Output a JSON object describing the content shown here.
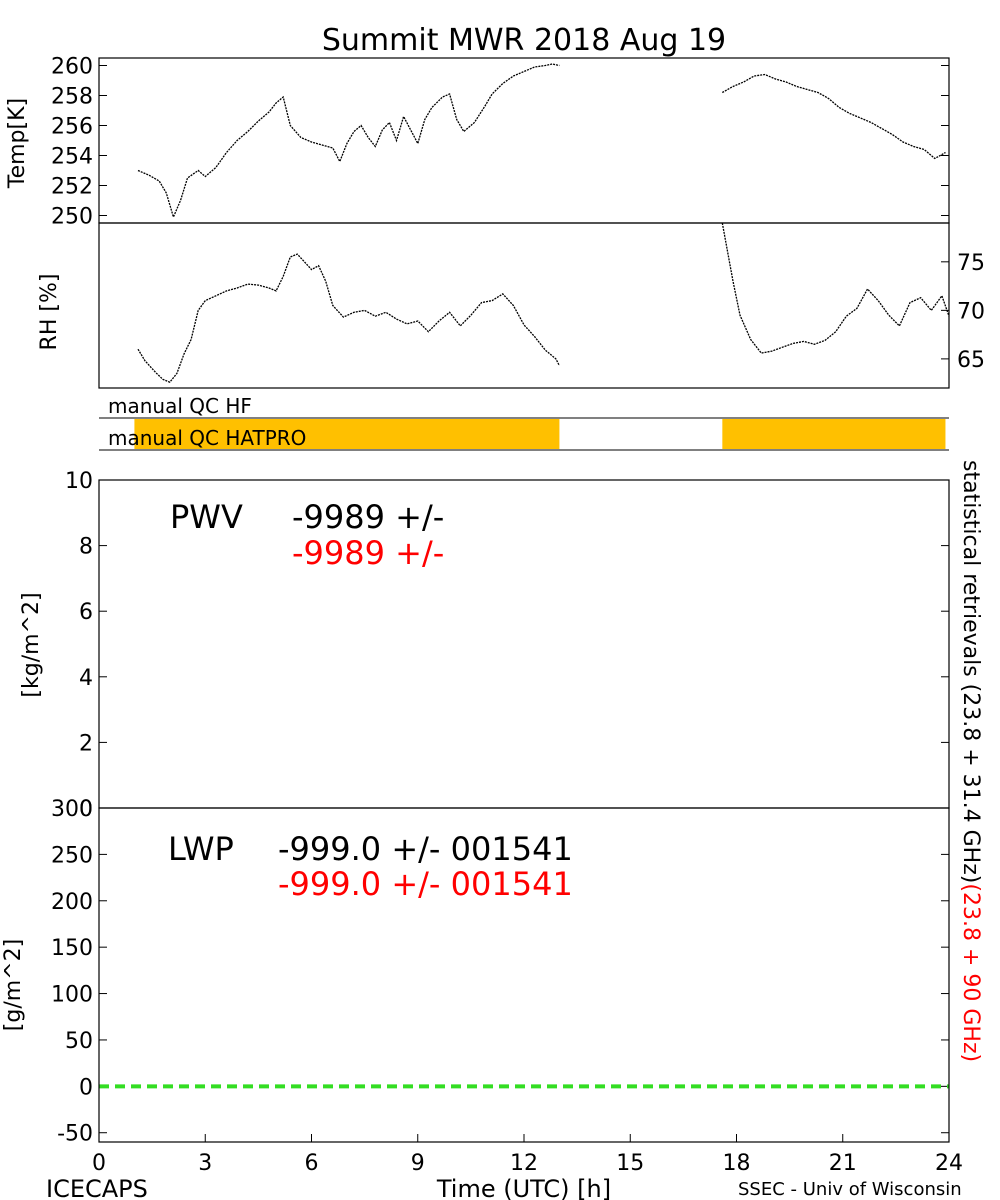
{
  "title": "Summit MWR 2018 Aug 19",
  "footer": {
    "left": "ICECAPS",
    "xlabel": "Time (UTC) [h]",
    "right": "SSEC - Univ of Wisconsin"
  },
  "side_label": {
    "black": "statistical retrievals (23.8 + 31.4 GHz)",
    "red": "(23.8 + 90 GHz)"
  },
  "colors": {
    "series_black": "#000000",
    "series_red": "#ff0000",
    "qc_bar": "#ffc000",
    "zero_line": "#33dd22"
  },
  "chart_data": [
    {
      "type": "line",
      "panel": "temperature",
      "ylabel": "Temp[K]",
      "xlim": [
        0,
        24
      ],
      "ylim": [
        249.5,
        260.5
      ],
      "yticks": [
        250,
        252,
        254,
        256,
        258,
        260
      ],
      "series": [
        {
          "x": [
            1.1,
            1.4,
            1.7,
            1.9,
            2.1,
            2.3,
            2.5,
            2.8,
            3.0,
            3.3,
            3.6,
            3.9,
            4.2,
            4.5,
            4.8,
            5.0,
            5.2,
            5.4,
            5.7,
            6.0,
            6.3,
            6.6,
            6.8,
            7.0,
            7.2,
            7.4,
            7.6,
            7.8,
            8.0,
            8.2,
            8.4,
            8.6,
            8.8,
            9.0,
            9.2,
            9.4,
            9.7,
            9.9,
            10.1,
            10.3,
            10.6,
            10.9,
            11.1,
            11.4,
            11.7,
            12.0,
            12.3,
            12.6,
            12.8,
            13.0
          ],
          "values": [
            253.0,
            252.7,
            252.3,
            251.5,
            249.9,
            251.0,
            252.5,
            253.0,
            252.6,
            253.2,
            254.2,
            255.0,
            255.6,
            256.3,
            256.9,
            257.5,
            257.9,
            256.0,
            255.2,
            254.9,
            254.7,
            254.5,
            253.6,
            254.8,
            255.6,
            256.0,
            255.2,
            254.6,
            255.7,
            256.2,
            255.0,
            256.6,
            255.7,
            254.8,
            256.4,
            257.2,
            257.9,
            258.1,
            256.4,
            255.6,
            256.2,
            257.3,
            258.1,
            258.8,
            259.3,
            259.6,
            259.9,
            260.0,
            260.1,
            260.0
          ]
        },
        {
          "x": [
            17.6,
            17.9,
            18.2,
            18.5,
            18.8,
            19.1,
            19.4,
            19.7,
            20.0,
            20.3,
            20.6,
            20.9,
            21.2,
            21.5,
            21.8,
            22.1,
            22.4,
            22.7,
            23.0,
            23.3,
            23.6,
            23.9
          ],
          "values": [
            258.2,
            258.6,
            258.9,
            259.3,
            259.4,
            259.1,
            258.9,
            258.6,
            258.4,
            258.2,
            257.8,
            257.2,
            256.8,
            256.5,
            256.2,
            255.8,
            255.4,
            254.9,
            254.6,
            254.4,
            253.8,
            254.2
          ]
        }
      ]
    },
    {
      "type": "line",
      "panel": "relative humidity",
      "ylabel": "RH [%]",
      "xlim": [
        0,
        24
      ],
      "ylim": [
        62,
        79
      ],
      "yticks": [
        65,
        70,
        75
      ],
      "series": [
        {
          "x": [
            1.1,
            1.3,
            1.6,
            1.8,
            2.0,
            2.2,
            2.4,
            2.6,
            2.8,
            3.0,
            3.3,
            3.6,
            3.9,
            4.2,
            4.5,
            4.8,
            5.0,
            5.2,
            5.4,
            5.6,
            5.8,
            6.0,
            6.2,
            6.4,
            6.6,
            6.9,
            7.2,
            7.5,
            7.8,
            8.1,
            8.4,
            8.7,
            9.0,
            9.3,
            9.6,
            9.9,
            10.2,
            10.5,
            10.8,
            11.1,
            11.4,
            11.7,
            12.0,
            12.3,
            12.6,
            12.9,
            13.0
          ],
          "values": [
            66.0,
            64.8,
            63.6,
            62.9,
            62.6,
            63.5,
            65.5,
            67.0,
            70.0,
            71.0,
            71.5,
            72.0,
            72.3,
            72.7,
            72.6,
            72.3,
            72.0,
            73.5,
            75.5,
            75.8,
            75.0,
            74.2,
            74.6,
            73.0,
            70.5,
            69.3,
            69.8,
            70.0,
            69.4,
            69.8,
            69.1,
            68.6,
            68.9,
            67.8,
            68.9,
            69.8,
            68.4,
            69.5,
            70.8,
            71.0,
            71.7,
            70.5,
            68.5,
            67.3,
            65.9,
            65.0,
            64.3
          ]
        },
        {
          "x": [
            17.6,
            17.9,
            18.1,
            18.4,
            18.7,
            19.0,
            19.3,
            19.6,
            19.9,
            20.2,
            20.5,
            20.8,
            21.1,
            21.4,
            21.7,
            22.0,
            22.3,
            22.6,
            22.9,
            23.2,
            23.5,
            23.8,
            24.0
          ],
          "values": [
            79.0,
            73.0,
            69.5,
            67.0,
            65.6,
            65.8,
            66.2,
            66.6,
            66.8,
            66.5,
            66.9,
            67.8,
            69.4,
            70.2,
            72.2,
            71.0,
            69.5,
            68.4,
            70.8,
            71.3,
            70.0,
            71.5,
            69.4
          ]
        }
      ]
    },
    {
      "type": "line",
      "panel": "PWV",
      "ylabel": "[kg/m^2]",
      "xlim": [
        0,
        24
      ],
      "ylim": [
        0,
        10
      ],
      "yticks": [
        0,
        2,
        4,
        6,
        8,
        10
      ],
      "annotation": {
        "label": "PWV",
        "black": "-9989 +/-",
        "red": "-9989 +/-"
      }
    },
    {
      "type": "line",
      "panel": "LWP",
      "ylabel": "[g/m^2]",
      "xlabel": "Time (UTC) [h]",
      "xlim": [
        0,
        24
      ],
      "xticks": [
        0,
        3,
        6,
        9,
        12,
        15,
        18,
        21,
        24
      ],
      "ylim": [
        -60,
        300
      ],
      "yticks": [
        -50,
        0,
        50,
        100,
        150,
        200,
        250,
        300
      ],
      "zero_line": 0,
      "annotation": {
        "label": "LWP",
        "black": "-999.0 +/- 001541",
        "red": "-999.0 +/- 001541"
      }
    }
  ],
  "qc": {
    "hf_label": "manual QC HF",
    "hatpro_label": "manual QC HATPRO",
    "hatpro_flags": [
      [
        1.0,
        13.0
      ],
      [
        17.6,
        23.9
      ]
    ]
  }
}
